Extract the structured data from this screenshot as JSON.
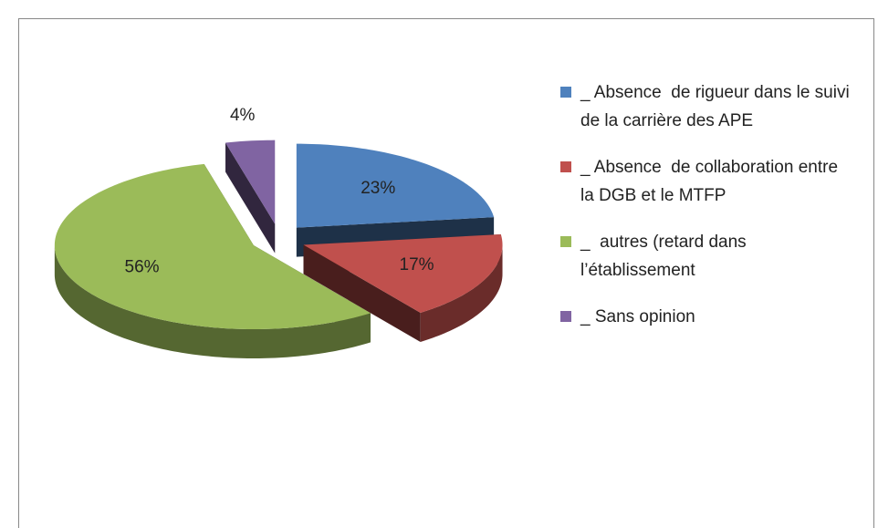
{
  "chart_data": {
    "type": "pie3d",
    "categories": [
      "_ Absence  de rigueur dans le suivi de la carrière des APE",
      "_ Absence  de collaboration entre la DGB et le MTFP",
      "_  autres (retard dans l’établissement",
      "_ Sans opinion"
    ],
    "values": [
      23,
      17,
      56,
      4
    ],
    "value_labels": [
      "23%",
      "17%",
      "56%",
      "4%"
    ],
    "colors": [
      "#4f81bd",
      "#c0504d",
      "#9bbb59",
      "#8064a2"
    ],
    "legend": "right"
  }
}
